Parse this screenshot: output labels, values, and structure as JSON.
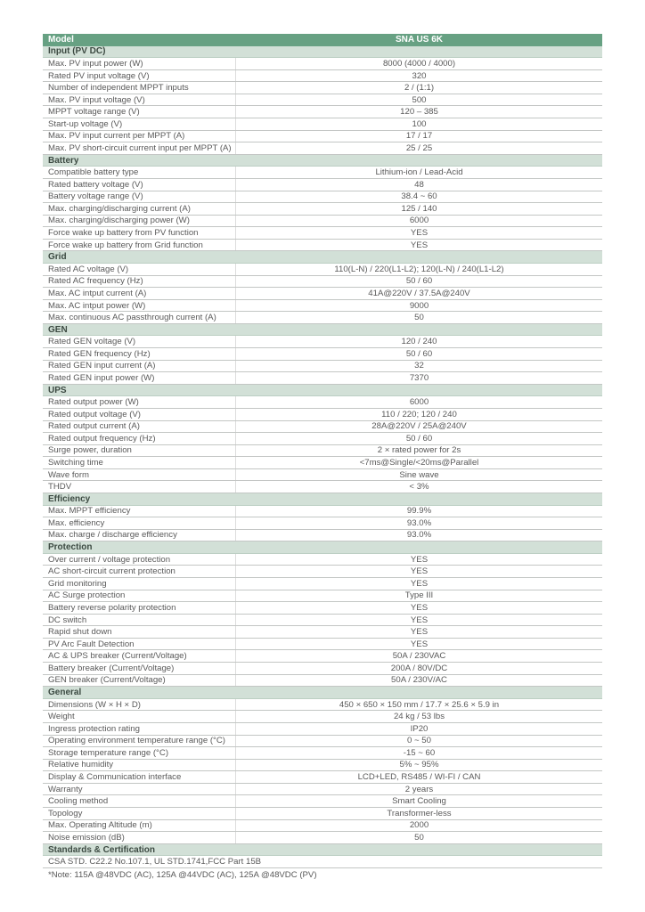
{
  "colors": {
    "header_green": "#67a183",
    "section_green": "#d2e0d7",
    "row_text": "#595959",
    "header_text": "#ffffff",
    "border": "#c3c6c4"
  },
  "table": {
    "header": {
      "label": "Model",
      "value": "SNA US 6K"
    },
    "sections": [
      {
        "title": "Input (PV DC)",
        "rows": [
          {
            "label": "Max. PV input power (W)",
            "value": "8000 (4000 / 4000)"
          },
          {
            "label": "Rated PV input voltage (V)",
            "value": "320"
          },
          {
            "label": "Number of independent MPPT inputs",
            "value": "2 / (1:1)"
          },
          {
            "label": "Max. PV input voltage (V)",
            "value": "500"
          },
          {
            "label": "MPPT voltage range (V)",
            "value": "120 – 385"
          },
          {
            "label": "Start-up voltage (V)",
            "value": "100"
          },
          {
            "label": "Max. PV input current per MPPT (A)",
            "value": "17 / 17"
          },
          {
            "label": "Max. PV short-circuit current input per MPPT (A)",
            "value": "25 / 25"
          }
        ]
      },
      {
        "title": "Battery",
        "rows": [
          {
            "label": "Compatible battery type",
            "value": "Lithium-ion / Lead-Acid"
          },
          {
            "label": "Rated battery voltage (V)",
            "value": "48"
          },
          {
            "label": "Battery voltage range (V)",
            "value": "38.4 ~ 60"
          },
          {
            "label": "Max. charging/discharging current (A)",
            "value": "125 / 140"
          },
          {
            "label": "Max. charging/discharging power (W)",
            "value": "6000"
          },
          {
            "label": "Force wake up battery from PV function",
            "value": "YES"
          },
          {
            "label": "Force wake up battery from Grid function",
            "value": "YES"
          }
        ]
      },
      {
        "title": "Grid",
        "rows": [
          {
            "label": "Rated AC voltage (V)",
            "value": "110(L-N) / 220(L1-L2); 120(L-N) / 240(L1-L2)"
          },
          {
            "label": "Rated AC frequency (Hz)",
            "value": "50 / 60"
          },
          {
            "label": "Max. AC intput current (A)",
            "value": "41A@220V / 37.5A@240V"
          },
          {
            "label": "Max. AC intput power (W)",
            "value": "9000"
          },
          {
            "label": "Max. continuous AC passthrough current (A)",
            "value": "50"
          }
        ]
      },
      {
        "title": "GEN",
        "rows": [
          {
            "label": "Rated GEN voltage (V)",
            "value": "120 / 240"
          },
          {
            "label": "Rated GEN frequency (Hz)",
            "value": "50 / 60"
          },
          {
            "label": "Rated GEN input current (A)",
            "value": "32"
          },
          {
            "label": "Rated GEN input power (W)",
            "value": "7370"
          }
        ]
      },
      {
        "title": "UPS",
        "rows": [
          {
            "label": "Rated output power (W)",
            "value": "6000"
          },
          {
            "label": "Rated output voltage (V)",
            "value": "110 / 220; 120 / 240"
          },
          {
            "label": "Rated output current (A)",
            "value": "28A@220V / 25A@240V"
          },
          {
            "label": "Rated output frequency (Hz)",
            "value": "50 / 60"
          },
          {
            "label": "Surge power, duration",
            "value": "2 × rated power for 2s"
          },
          {
            "label": "Switching time",
            "value": "<7ms@Single/<20ms@Parallel"
          },
          {
            "label": "Wave form",
            "value": "Sine wave"
          },
          {
            "label": "THDV",
            "value": "< 3%"
          }
        ]
      },
      {
        "title": "Efficiency",
        "rows": [
          {
            "label": "Max. MPPT efficiency",
            "value": "99.9%"
          },
          {
            "label": "Max. efficiency",
            "value": "93.0%"
          },
          {
            "label": "Max. charge / discharge efficiency",
            "value": "93.0%"
          }
        ]
      },
      {
        "title": "Protection",
        "rows": [
          {
            "label": "Over current / voltage protection",
            "value": "YES"
          },
          {
            "label": "AC short-circuit current protection",
            "value": "YES"
          },
          {
            "label": "Grid monitoring",
            "value": "YES"
          },
          {
            "label": "AC Surge protection",
            "value": "Type III"
          },
          {
            "label": "Battery reverse polarity protection",
            "value": "YES"
          },
          {
            "label": "DC switch",
            "value": "YES"
          },
          {
            "label": "Rapid shut down",
            "value": "YES"
          },
          {
            "label": "PV Arc Fault Detection",
            "value": "YES"
          },
          {
            "label": "AC & UPS breaker (Current/Voltage)",
            "value": "50A / 230VAC"
          },
          {
            "label": "Battery breaker (Current/Voltage)",
            "value": "200A / 80V/DC"
          },
          {
            "label": "GEN breaker (Current/Voltage)",
            "value": "50A / 230V/AC"
          }
        ]
      },
      {
        "title": "General",
        "rows": [
          {
            "label": "Dimensions (W × H × D)",
            "value": "450 × 650 × 150 mm / 17.7 × 25.6 × 5.9 in"
          },
          {
            "label": "Weight",
            "value": "24 kg / 53 lbs"
          },
          {
            "label": "Ingress protection rating",
            "value": "IP20"
          },
          {
            "label": "Operating environment temperature range (°C)",
            "value": "0 ~ 50"
          },
          {
            "label": "Storage temperature range (°C)",
            "value": "-15 ~ 60"
          },
          {
            "label": "Relative humidity",
            "value": "5% ~ 95%"
          },
          {
            "label": "Display & Communication interface",
            "value": "LCD+LED, RS485 / WI-FI / CAN"
          },
          {
            "label": "Warranty",
            "value": "2 years"
          },
          {
            "label": "Cooling method",
            "value": "Smart Cooling"
          },
          {
            "label": "Topology",
            "value": "Transformer-less"
          },
          {
            "label": "Max. Operating Altitude (m)",
            "value": "2000"
          },
          {
            "label": "Noise emission (dB)",
            "value": "50"
          }
        ]
      },
      {
        "title": "Standards & Certification",
        "full_rows": [
          "CSA STD. C22.2 No.107.1, UL STD.1741,FCC Part 15B"
        ]
      }
    ],
    "footnote": "*Note: 115A @48VDC (AC), 125A @44VDC (AC), 125A @48VDC (PV)"
  }
}
